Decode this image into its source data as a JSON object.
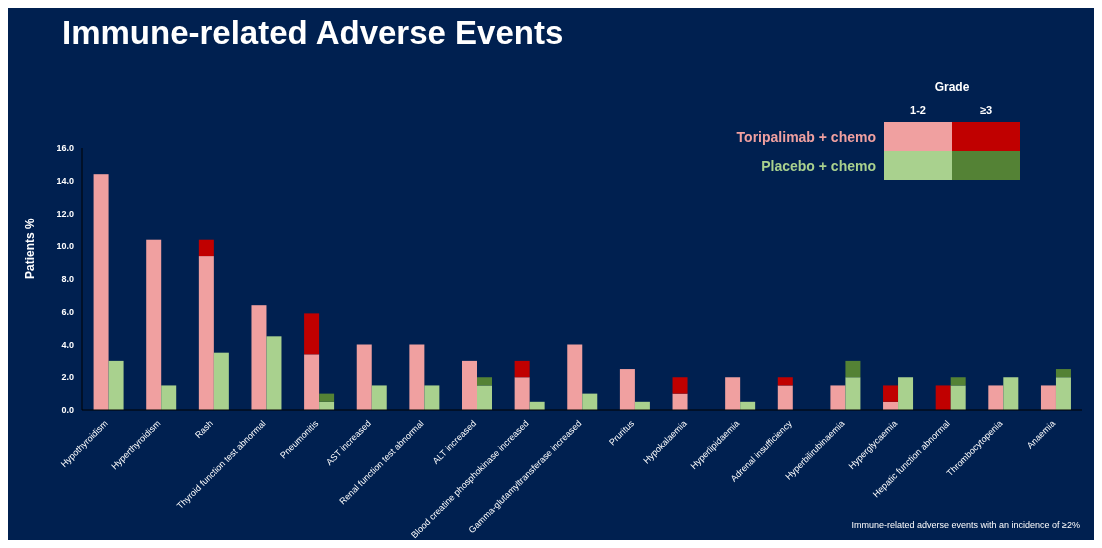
{
  "chart_data": {
    "type": "bar",
    "title": "Immune-related Adverse Events",
    "ylabel": "Patients %",
    "legend_title": "Grade",
    "legend": "top right",
    "categories": [
      "Hypothyroidism",
      "Hyperthyroidism",
      "Rash",
      "Thyroid function test abnormal",
      "Pneumonitis",
      "AST increased",
      "Renal function test abnormal",
      "ALT increased",
      "Blood creatine phosphokinase increased",
      "Gamma-glutamyltransferase increased",
      "Pruritus",
      "Hypokalaemia",
      "Hyperlipidaemia",
      "Adrenal insufficiency",
      "Hyperbilirubinaemia",
      "Hyperglycaemia",
      "Hepatic function abnormal",
      "Thrombocytopenia",
      "Anaemia"
    ],
    "series": [
      {
        "name": "Toripalimab + chemo",
        "color": "#f0a0a0",
        "base": [
          0,
          0,
          0,
          0,
          0,
          0,
          0,
          0,
          0,
          0,
          0,
          0,
          0,
          0,
          0,
          0,
          null,
          0,
          0
        ],
        "values": [
          14.4,
          10.4,
          9.4,
          6.4,
          3.4,
          4.0,
          4.0,
          3.0,
          2.0,
          4.0,
          2.5,
          1.0,
          2.0,
          1.5,
          1.5,
          0.5,
          0,
          1.5,
          1.5
        ]
      },
      {
        "color": "#c00000",
        "base": [
          null,
          null,
          9.4,
          null,
          3.4,
          null,
          null,
          null,
          2.0,
          null,
          null,
          1.0,
          null,
          1.5,
          null,
          0.5,
          0,
          null,
          null
        ],
        "values": [
          0,
          0,
          1.0,
          0,
          2.5,
          0,
          0,
          0,
          1.0,
          0,
          0,
          1.0,
          0,
          0.5,
          0,
          1.0,
          1.5,
          0,
          0
        ]
      },
      {
        "name": "Placebo + chemo",
        "color": "#a9d18e",
        "base": [
          0,
          0,
          0,
          0,
          0,
          0,
          0,
          0,
          0,
          0,
          0,
          null,
          0,
          null,
          0,
          0,
          0,
          0,
          0
        ],
        "values": [
          3.0,
          1.5,
          3.5,
          4.5,
          0.5,
          1.5,
          1.5,
          1.5,
          0.5,
          1.0,
          0.5,
          0,
          0.5,
          0,
          2.0,
          2.0,
          1.5,
          2.0,
          2.0
        ]
      },
      {
        "color": "#548235",
        "base": [
          null,
          null,
          null,
          null,
          0.5,
          null,
          null,
          1.5,
          null,
          null,
          null,
          null,
          null,
          null,
          2.0,
          null,
          1.5,
          null,
          2.0
        ],
        "values": [
          0,
          0,
          0,
          0,
          0.5,
          0,
          0,
          0.5,
          0,
          0,
          0,
          0,
          0,
          0,
          1.0,
          0,
          0.5,
          0,
          0.5
        ]
      }
    ],
    "ylim": [
      0,
      16
    ],
    "yticks": [
      {
        "value": 0,
        "label": "0.0"
      },
      {
        "value": 2,
        "label": "2.0"
      },
      {
        "value": 4,
        "label": "4.0"
      },
      {
        "value": 6,
        "label": "6.0"
      },
      {
        "value": 8,
        "label": "8.0"
      },
      {
        "value": 10,
        "label": "10.0"
      },
      {
        "value": 12,
        "label": "12.0"
      },
      {
        "value": 14,
        "label": "14.0"
      },
      {
        "value": 16,
        "label": "16.0"
      }
    ],
    "annotations": [
      "1-2",
      "≥3",
      "Immune-related adverse events with an incidence of ≥2%"
    ]
  }
}
